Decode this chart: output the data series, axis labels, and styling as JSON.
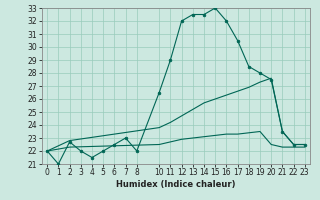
{
  "xlabel": "Humidex (Indice chaleur)",
  "bg_color": "#cce8e0",
  "grid_color": "#99ccbb",
  "line_color": "#006655",
  "line1_x": [
    0,
    1,
    2,
    3,
    4,
    5,
    6,
    7,
    8,
    10,
    11,
    12,
    13,
    14,
    15,
    16,
    17,
    18,
    19,
    20,
    21,
    22,
    23
  ],
  "line1_y": [
    22,
    21,
    22.7,
    22,
    21.5,
    22,
    22.5,
    23,
    22,
    26.5,
    29,
    32,
    32.5,
    32.5,
    33,
    32,
    30.5,
    28.5,
    28,
    27.5,
    23.5,
    22.5,
    22.5
  ],
  "line2_x": [
    0,
    2,
    10,
    11,
    12,
    13,
    14,
    15,
    16,
    17,
    18,
    19,
    20,
    21,
    22,
    23
  ],
  "line2_y": [
    22,
    22.8,
    23.8,
    24.2,
    24.7,
    25.2,
    25.7,
    26.0,
    26.3,
    26.6,
    26.9,
    27.3,
    27.6,
    23.5,
    22.5,
    22.5
  ],
  "line3_x": [
    0,
    2,
    10,
    11,
    12,
    13,
    14,
    15,
    16,
    17,
    18,
    19,
    20,
    21,
    22,
    23
  ],
  "line3_y": [
    22,
    22.3,
    22.5,
    22.7,
    22.9,
    23.0,
    23.1,
    23.2,
    23.3,
    23.3,
    23.4,
    23.5,
    22.5,
    22.3,
    22.3,
    22.3
  ],
  "ylim": [
    21,
    33
  ],
  "xlim": [
    -0.5,
    23.5
  ],
  "yticks": [
    21,
    22,
    23,
    24,
    25,
    26,
    27,
    28,
    29,
    30,
    31,
    32,
    33
  ],
  "xticks": [
    0,
    1,
    2,
    3,
    4,
    5,
    6,
    7,
    8,
    10,
    11,
    12,
    13,
    14,
    15,
    16,
    17,
    18,
    19,
    20,
    21,
    22,
    23
  ],
  "tick_fontsize": 5.5,
  "xlabel_fontsize": 6.0
}
